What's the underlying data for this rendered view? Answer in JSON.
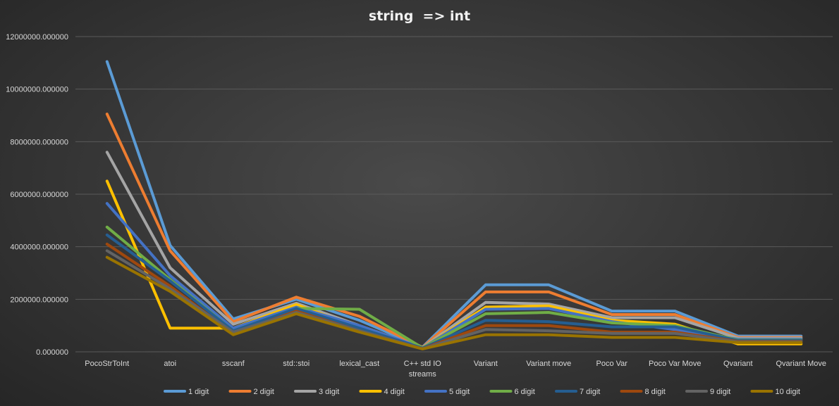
{
  "chart_data": {
    "type": "line",
    "title": "string  => int",
    "xlabel": "",
    "ylabel": "",
    "ylim": [
      0,
      12000000
    ],
    "grid": true,
    "legend_position": "bottom",
    "y_ticks": [
      "0.000000",
      "2000000.000000",
      "4000000.000000",
      "6000000.000000",
      "8000000.000000",
      "10000000.000000",
      "12000000.000000"
    ],
    "categories": [
      [
        "PocoStrToInt"
      ],
      [
        "atoi"
      ],
      [
        "sscanf"
      ],
      [
        "std::stoi"
      ],
      [
        "lexical_cast"
      ],
      [
        "C++ std IO",
        "streams"
      ],
      [
        "Variant"
      ],
      [
        "Variant move"
      ],
      [
        "Poco Var"
      ],
      [
        "Poco Var Move"
      ],
      [
        "Qvariant"
      ],
      [
        "Qvariant Move"
      ]
    ],
    "series": [
      {
        "name": "1 digit",
        "color": "#5b9bd5",
        "values": [
          11050000,
          4050000,
          1250000,
          2000000,
          1200000,
          180000,
          2550000,
          2550000,
          1550000,
          1550000,
          600000,
          600000
        ]
      },
      {
        "name": "2 digit",
        "color": "#ed7d31",
        "values": [
          9050000,
          3850000,
          1150000,
          2080000,
          1350000,
          170000,
          2280000,
          2280000,
          1420000,
          1420000,
          550000,
          550000
        ]
      },
      {
        "name": "3 digit",
        "color": "#a5a5a5",
        "values": [
          7600000,
          3200000,
          1050000,
          1850000,
          1000000,
          160000,
          1880000,
          1820000,
          1300000,
          1300000,
          520000,
          520000
        ]
      },
      {
        "name": "4 digit",
        "color": "#ffc000",
        "values": [
          6500000,
          900000,
          900000,
          1800000,
          900000,
          150000,
          1700000,
          1750000,
          1200000,
          1050000,
          300000,
          300000
        ]
      },
      {
        "name": "5 digit",
        "color": "#4472c4",
        "values": [
          5650000,
          2900000,
          900000,
          1700000,
          1000000,
          150000,
          1620000,
          1650000,
          1150000,
          850000,
          480000,
          480000
        ]
      },
      {
        "name": "6 digit",
        "color": "#70ad47",
        "values": [
          4750000,
          2750000,
          800000,
          1650000,
          1620000,
          150000,
          1450000,
          1500000,
          1100000,
          1000000,
          450000,
          450000
        ]
      },
      {
        "name": "7 digit",
        "color": "#255e91",
        "values": [
          4450000,
          2700000,
          800000,
          1650000,
          900000,
          140000,
          1200000,
          1150000,
          950000,
          950000,
          430000,
          430000
        ]
      },
      {
        "name": "8 digit",
        "color": "#9e480e",
        "values": [
          4100000,
          2500000,
          700000,
          1550000,
          800000,
          120000,
          1000000,
          1000000,
          750000,
          750000,
          400000,
          400000
        ]
      },
      {
        "name": "9 digit",
        "color": "#636363",
        "values": [
          3850000,
          2400000,
          750000,
          1500000,
          800000,
          120000,
          850000,
          800000,
          700000,
          700000,
          380000,
          380000
        ]
      },
      {
        "name": "10 digit",
        "color": "#997300",
        "values": [
          3600000,
          2300000,
          650000,
          1450000,
          750000,
          110000,
          650000,
          650000,
          550000,
          550000,
          350000,
          350000
        ]
      }
    ]
  }
}
